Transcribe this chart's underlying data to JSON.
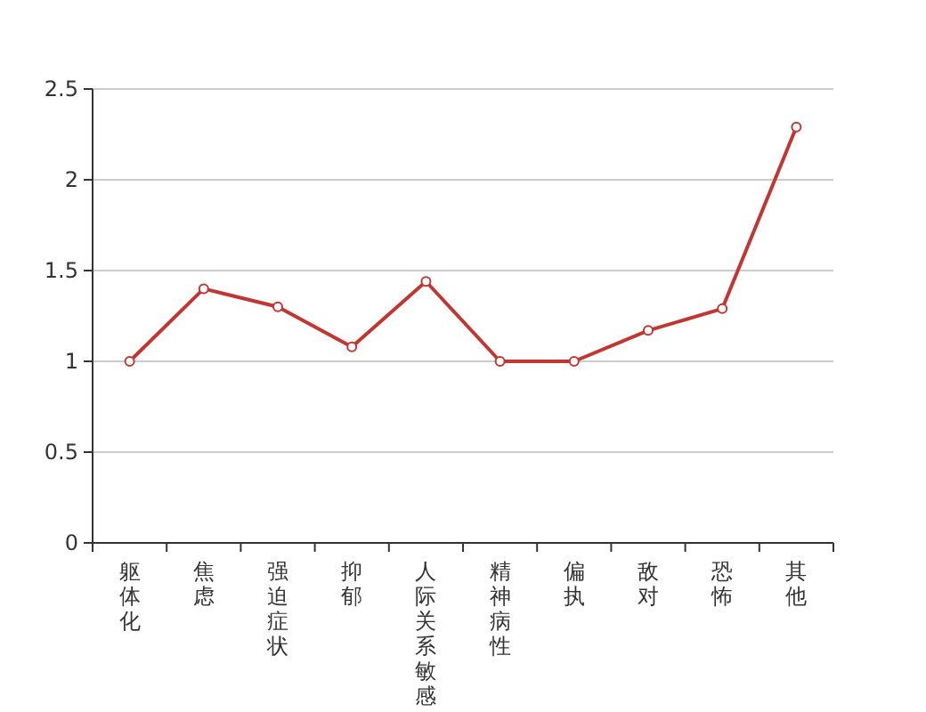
{
  "chart_data": {
    "type": "line",
    "categories": [
      "躯体化",
      "焦虑",
      "强迫症状",
      "抑郁",
      "人际关系敏感",
      "精神病性",
      "偏执",
      "敌对",
      "恐怖",
      "其他"
    ],
    "series": [
      {
        "color": "#c23531",
        "values": [
          1.0,
          1.4,
          1.3,
          1.08,
          1.44,
          1.0,
          1.0,
          1.17,
          1.29,
          2.29
        ]
      }
    ],
    "ylim": [
      0,
      2.5
    ],
    "yticks": [
      0,
      0.5,
      1,
      1.5,
      2,
      2.5
    ],
    "grid": "y",
    "marker": "circle",
    "line_style": "solid"
  }
}
